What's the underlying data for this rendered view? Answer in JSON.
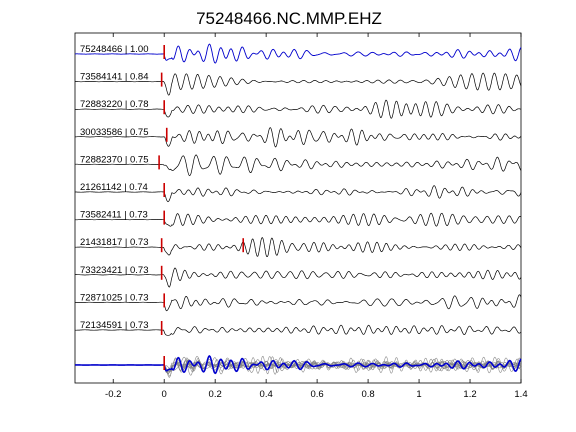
{
  "chart_data": {
    "type": "line",
    "title": "75248466.NC.MMP.EHZ",
    "xlabel": "",
    "ylabel": "",
    "xlim": [
      -0.35,
      1.4
    ],
    "xticks": [
      "-0.2",
      "0",
      "0.2",
      "0.4",
      "0.6",
      "0.8",
      "1",
      "1.2",
      "1.4"
    ],
    "xtick_values": [
      -0.2,
      0,
      0.2,
      0.4,
      0.6,
      0.8,
      1.0,
      1.2,
      1.4
    ],
    "grid": false,
    "colors": {
      "reference": "#0000cc",
      "trace": "#000000",
      "pick": "#cc0000",
      "stack_overlay": "#808080",
      "stack_mean": "#0000cc"
    },
    "series": [
      {
        "label": "75248466 | 1.00",
        "pick_times": [
          0.0
        ]
      },
      {
        "label": "73584141 | 0.84",
        "pick_times": [
          -0.01
        ]
      },
      {
        "label": "72883220 | 0.78",
        "pick_times": [
          0.0
        ]
      },
      {
        "label": "30033586 | 0.75",
        "pick_times": [
          0.01
        ]
      },
      {
        "label": "72882370 | 0.75",
        "pick_times": [
          -0.02
        ]
      },
      {
        "label": "21261142 | 0.74",
        "pick_times": [
          0.0
        ]
      },
      {
        "label": "73582411 | 0.73",
        "pick_times": [
          0.0
        ]
      },
      {
        "label": "21431817 | 0.73",
        "pick_times": [
          -0.01,
          0.31
        ]
      },
      {
        "label": "73323421 | 0.73",
        "pick_times": [
          -0.01
        ]
      },
      {
        "label": "72871025 | 0.73",
        "pick_times": [
          0.0
        ]
      },
      {
        "label": "72134591 | 0.73",
        "pick_times": [
          -0.01
        ]
      }
    ],
    "stack": {
      "pick_times": [
        0.0
      ]
    }
  }
}
